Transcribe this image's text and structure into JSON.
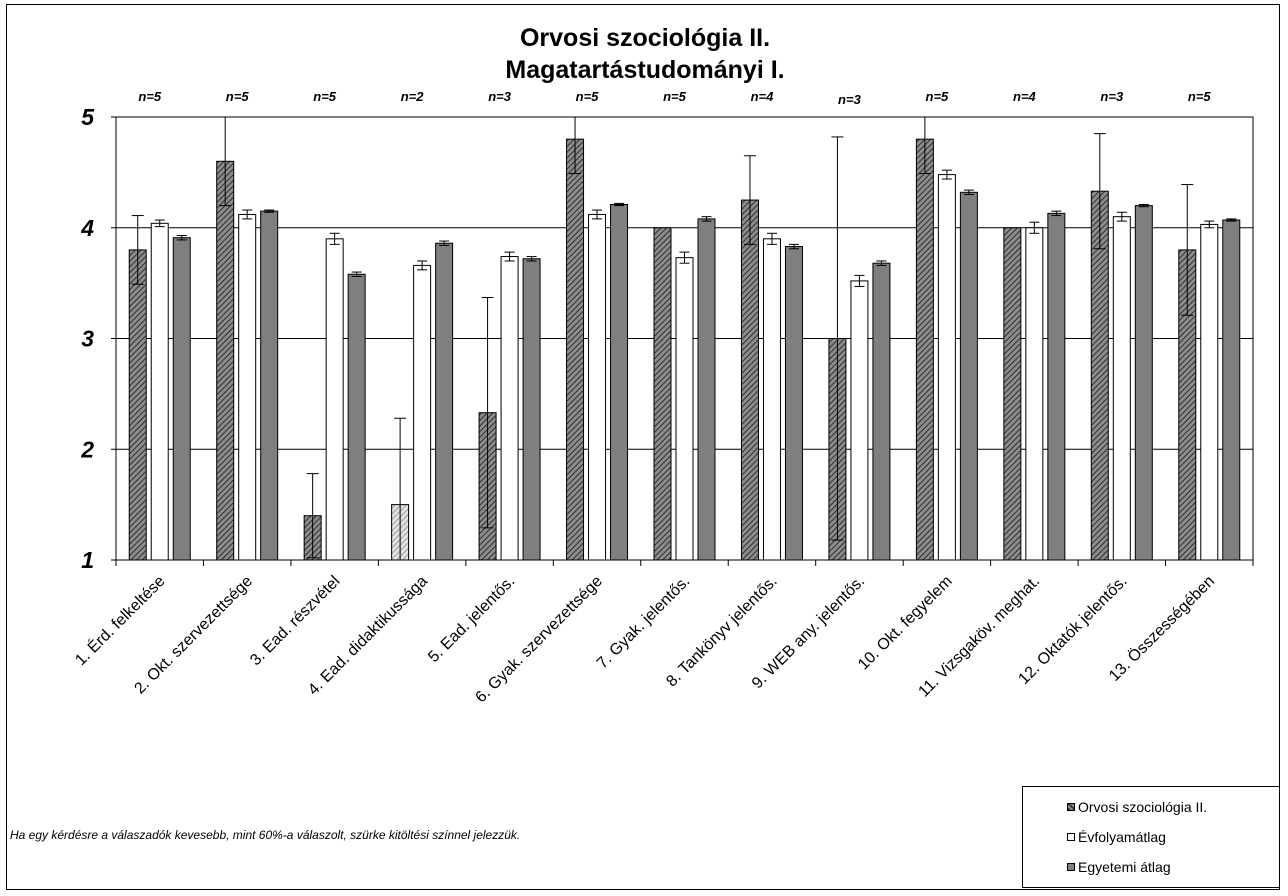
{
  "chart_data": {
    "type": "bar",
    "title_lines": [
      "Orvosi szociológia II.",
      "Magatartástudományi I."
    ],
    "categories": [
      "1. Érd. felkeltése",
      "2. Okt. szervezettsége",
      "3. Ead. részvétel",
      "4. Ead. didaktikussága",
      "5. Ead. jelentős.",
      "6. Gyak. szervezettsége",
      "7. Gyak. jelentős.",
      "8. Tankönyv jelentős.",
      "9. WEB any. jelentős.",
      "10. Okt. fegyelem",
      "11. Vizsgaköv. meghat.",
      "12. Oktatók jelentős.",
      "13. Összességében"
    ],
    "n_labels": [
      "n=5",
      "n=5",
      "n=5",
      "n=2",
      "n=3",
      "n=5",
      "n=5",
      "n=4",
      "n=3",
      "n=5",
      "n=4",
      "n=3",
      "n=5"
    ],
    "series": [
      {
        "name": "Orvosi szociológia II.",
        "values": [
          3.8,
          4.6,
          1.4,
          1.5,
          2.33,
          4.8,
          4.0,
          4.25,
          3.0,
          4.8,
          4.0,
          4.33,
          3.8
        ],
        "error": [
          0.31,
          0.4,
          0.38,
          0.78,
          1.04,
          0.31,
          0.0,
          0.4,
          1.82,
          0.31,
          0.0,
          0.52,
          0.59
        ],
        "low_response": [
          false,
          false,
          false,
          true,
          false,
          false,
          false,
          false,
          false,
          false,
          false,
          false,
          false
        ]
      },
      {
        "name": "Évfolyamátlag",
        "values": [
          4.04,
          4.12,
          3.9,
          3.66,
          3.74,
          4.12,
          3.73,
          3.9,
          3.52,
          4.48,
          4.0,
          4.1,
          4.03
        ],
        "error": [
          0.03,
          0.04,
          0.05,
          0.04,
          0.04,
          0.04,
          0.05,
          0.05,
          0.05,
          0.04,
          0.05,
          0.04,
          0.03
        ]
      },
      {
        "name": "Egyetemi átlag",
        "values": [
          3.91,
          4.15,
          3.58,
          3.86,
          3.72,
          4.21,
          4.08,
          3.83,
          3.68,
          4.32,
          4.13,
          4.2,
          4.07
        ],
        "error": [
          0.02,
          0.01,
          0.02,
          0.02,
          0.02,
          0.01,
          0.02,
          0.02,
          0.02,
          0.02,
          0.02,
          0.01,
          0.01
        ]
      }
    ],
    "ylim": [
      1,
      5
    ],
    "yticks": [
      1,
      2,
      3,
      4,
      5
    ],
    "grid": true,
    "legend_position": "bottom-right",
    "colors": {
      "series1_hatch": "#6a6a6a",
      "series1_low_response": "#cfcfcf",
      "series2": "#ffffff",
      "series3": "#7f7f7f"
    }
  },
  "footnote": "Ha egy kérdésre a válaszadók kevesebb, mint 60%-a válaszolt, szürke kitöltési színnel jelezzük."
}
